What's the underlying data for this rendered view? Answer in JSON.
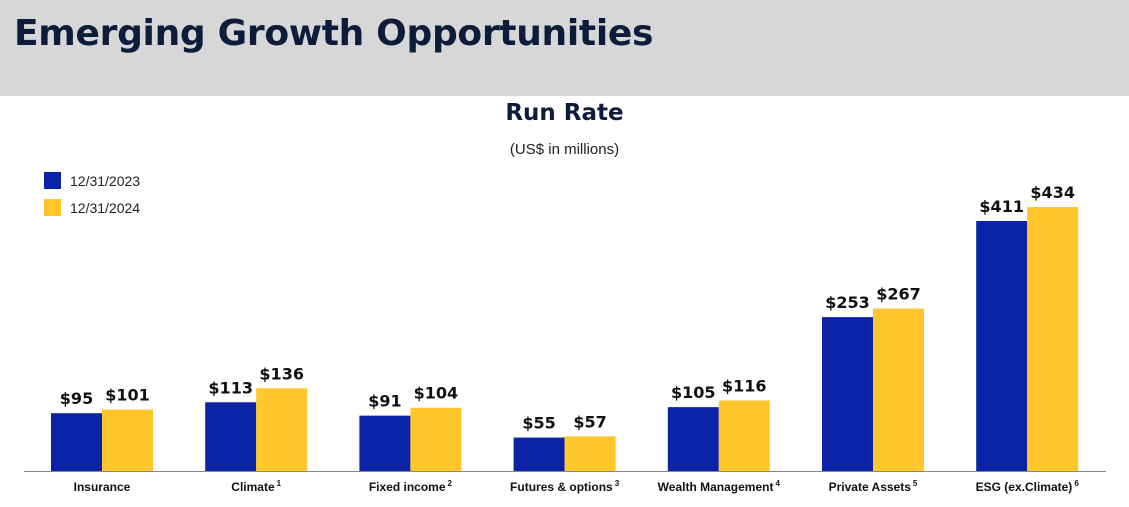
{
  "page": {
    "title": "Emerging Growth Opportunities"
  },
  "colors": {
    "header_bg": "#d6d7d6",
    "axis": "#888888"
  },
  "chart_data": {
    "type": "bar",
    "title": "Run Rate",
    "subtitle": "(US$ in millions)",
    "xlabel": "",
    "ylabel": "",
    "ylim": [
      0,
      434
    ],
    "grid": false,
    "legend_position": "top-left",
    "categories": [
      {
        "label": "Insurance",
        "sup": ""
      },
      {
        "label": "Climate",
        "sup": "1"
      },
      {
        "label": "Fixed income",
        "sup": "2"
      },
      {
        "label": "Futures & options",
        "sup": "3"
      },
      {
        "label": "Wealth Management",
        "sup": "4"
      },
      {
        "label": "Private Assets",
        "sup": "5"
      },
      {
        "label": "ESG (ex.Climate)",
        "sup": "6"
      }
    ],
    "series": [
      {
        "name": "12/31/2023",
        "color": "#0b24a7",
        "values": [
          95,
          113,
          91,
          55,
          105,
          253,
          411
        ],
        "labels": [
          "$95",
          "$113",
          "$91",
          "$55",
          "$105",
          "$253",
          "$411"
        ]
      },
      {
        "name": "12/31/2024",
        "color": "#ffc72c",
        "values": [
          101,
          136,
          104,
          57,
          116,
          267,
          434
        ],
        "labels": [
          "$101",
          "$136",
          "$104",
          "$57",
          "$116",
          "$267",
          "$434"
        ]
      }
    ]
  }
}
